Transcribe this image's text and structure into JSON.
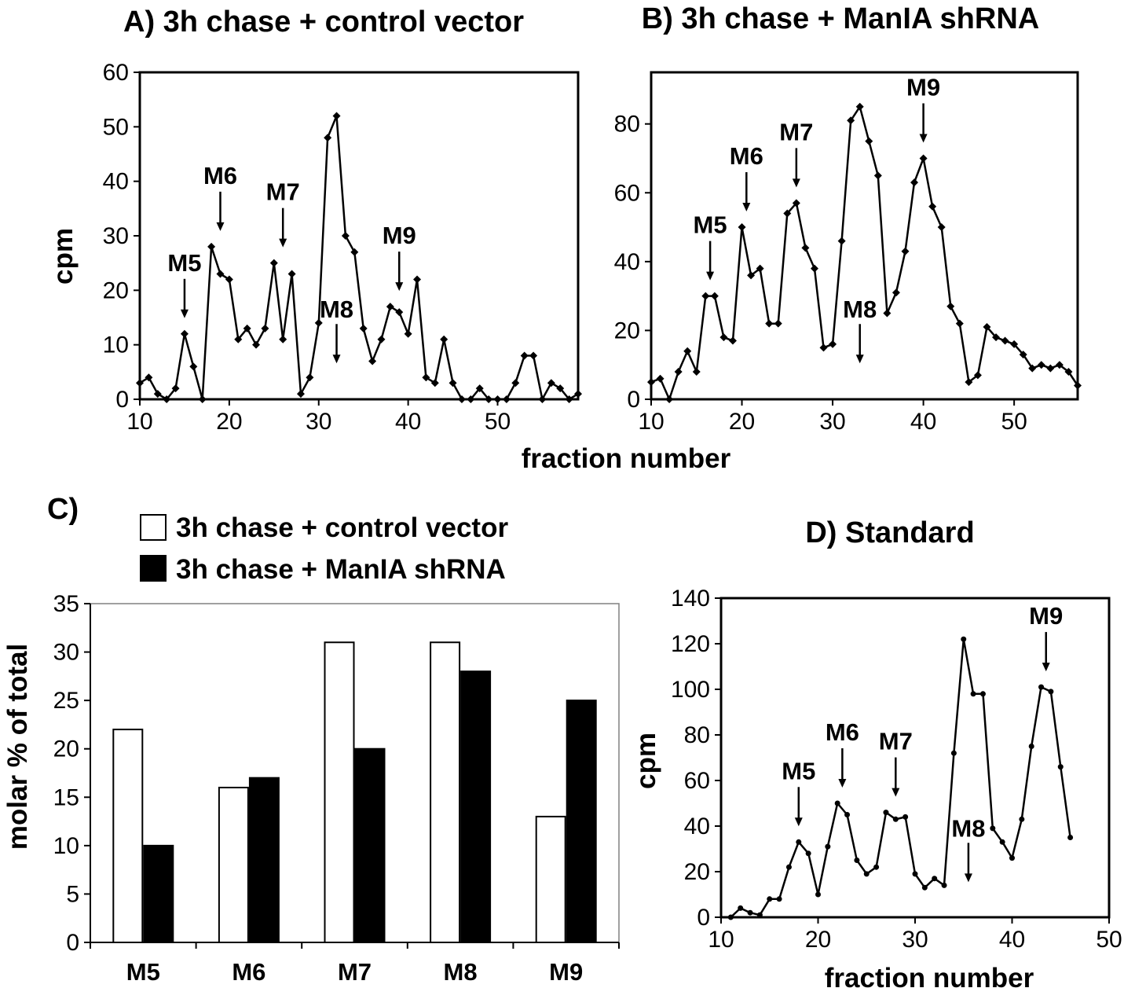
{
  "chart_data": [
    {
      "id": "A",
      "type": "line",
      "title": "A) 3h chase + control vector",
      "xlabel": "",
      "ylabel": "cpm",
      "xlim": [
        10,
        59
      ],
      "ylim": [
        0,
        60
      ],
      "xticks": [
        10,
        20,
        30,
        40,
        50
      ],
      "yticks": [
        0,
        10,
        20,
        30,
        40,
        50,
        60
      ],
      "grid": false,
      "marker": "diamond",
      "series": [
        {
          "x": [
            10,
            11,
            12,
            13,
            14,
            15,
            16,
            17,
            18,
            19,
            20,
            21,
            22,
            23,
            24,
            25,
            26,
            27,
            28,
            29,
            30,
            31,
            32,
            33,
            34,
            35,
            36,
            37,
            38,
            39,
            40,
            41,
            42,
            43,
            44,
            45,
            46,
            47,
            48,
            49,
            50,
            51,
            52,
            53,
            54,
            55,
            56,
            57,
            58,
            59
          ],
          "y": [
            3,
            4,
            1,
            0,
            2,
            12,
            6,
            0,
            28,
            23,
            22,
            11,
            13,
            10,
            13,
            25,
            11,
            23,
            1,
            4,
            14,
            48,
            52,
            30,
            27,
            13,
            7,
            11,
            17,
            16,
            12,
            22,
            4,
            3,
            11,
            3,
            0,
            0,
            2,
            0,
            0,
            0,
            3,
            8,
            8,
            0,
            3,
            2,
            0,
            1
          ]
        }
      ],
      "annotations": [
        {
          "label": "M5",
          "x": 15
        },
        {
          "label": "M6",
          "x": 19
        },
        {
          "label": "M7",
          "x": 26
        },
        {
          "label": "M8",
          "x": 32
        },
        {
          "label": "M9",
          "x": 39
        }
      ]
    },
    {
      "id": "B",
      "type": "line",
      "title": "B)  3h chase + ManIA shRNA",
      "xlabel": "",
      "ylabel": "",
      "xlim": [
        10,
        57
      ],
      "ylim": [
        0,
        95
      ],
      "xticks": [
        10,
        20,
        30,
        40,
        50
      ],
      "yticks": [
        0,
        20,
        40,
        60,
        80
      ],
      "grid": false,
      "marker": "diamond",
      "series": [
        {
          "x": [
            10,
            11,
            12,
            13,
            14,
            15,
            16,
            17,
            18,
            19,
            20,
            21,
            22,
            23,
            24,
            25,
            26,
            27,
            28,
            29,
            30,
            31,
            32,
            33,
            34,
            35,
            36,
            37,
            38,
            39,
            40,
            41,
            42,
            43,
            44,
            45,
            46,
            47,
            48,
            49,
            50,
            51,
            52,
            53,
            54,
            55,
            56,
            57
          ],
          "y": [
            5,
            6,
            0,
            8,
            14,
            8,
            30,
            30,
            18,
            17,
            50,
            36,
            38,
            22,
            22,
            54,
            57,
            44,
            38,
            15,
            16,
            46,
            81,
            85,
            75,
            65,
            25,
            31,
            43,
            63,
            70,
            56,
            50,
            27,
            22,
            5,
            7,
            21,
            18,
            17,
            16,
            13,
            9,
            10,
            9,
            10,
            8,
            4
          ]
        }
      ],
      "annotations": [
        {
          "label": "M5",
          "x": 16.5
        },
        {
          "label": "M6",
          "x": 20.5
        },
        {
          "label": "M7",
          "x": 26
        },
        {
          "label": "M8",
          "x": 33
        },
        {
          "label": "M9",
          "x": 40
        }
      ]
    },
    {
      "id": "C",
      "type": "bar",
      "title": "C)",
      "xlabel": "",
      "ylabel": "molar % of total",
      "ylim": [
        0,
        35
      ],
      "yticks": [
        0,
        5,
        10,
        15,
        20,
        25,
        30,
        35
      ],
      "grid": false,
      "legend_placement": "top",
      "categories": [
        "M5",
        "M6",
        "M7",
        "M8",
        "M9"
      ],
      "series": [
        {
          "name": "3h chase + control vector",
          "color": "#ffffff",
          "values": [
            22,
            16,
            31,
            31,
            13
          ]
        },
        {
          "name": "3h chase + ManIA shRNA",
          "color": "#000000",
          "values": [
            10,
            17,
            20,
            28,
            25
          ]
        }
      ]
    },
    {
      "id": "D",
      "type": "line",
      "title": "D)  Standard",
      "xlabel": "fraction number",
      "ylabel": "cpm",
      "xlim": [
        10,
        50
      ],
      "ylim": [
        0,
        140
      ],
      "xticks": [
        10,
        20,
        30,
        40,
        50
      ],
      "yticks": [
        0,
        20,
        40,
        60,
        80,
        100,
        120,
        140
      ],
      "grid": false,
      "marker": "dot",
      "series": [
        {
          "x": [
            11,
            12,
            13,
            14,
            15,
            16,
            17,
            18,
            19,
            20,
            21,
            22,
            23,
            24,
            25,
            26,
            27,
            28,
            29,
            30,
            31,
            32,
            33,
            34,
            35,
            36,
            37,
            38,
            39,
            40,
            41,
            42,
            43,
            44,
            45,
            46
          ],
          "y": [
            0,
            4,
            2,
            1,
            8,
            8,
            22,
            33,
            28,
            10,
            31,
            50,
            45,
            25,
            19,
            22,
            46,
            43,
            44,
            19,
            13,
            17,
            14,
            72,
            122,
            98,
            98,
            39,
            33,
            26,
            43,
            75,
            101,
            99,
            66,
            35
          ]
        }
      ],
      "annotations": [
        {
          "label": "M5",
          "x": 18
        },
        {
          "label": "M6",
          "x": 22.5
        },
        {
          "label": "M7",
          "x": 28
        },
        {
          "label": "M8",
          "x": 35.5
        },
        {
          "label": "M9",
          "x": 43.5
        }
      ]
    }
  ],
  "shared_xlabel": "fraction number",
  "colors": {
    "axis": "#000000",
    "line": "#000000",
    "marker": "#000000"
  }
}
